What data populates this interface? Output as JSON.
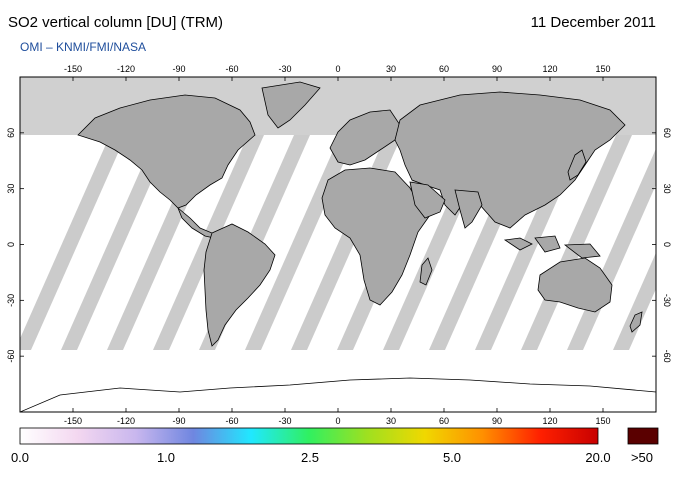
{
  "header": {
    "title": "SO2 vertical column [DU] (TRM)",
    "date": "11 December 2011",
    "source": "OMI  –  KNMI/FMI/NASA"
  },
  "map": {
    "projection": "equirectangular",
    "lon_range": [
      -180,
      180
    ],
    "lat_range": [
      -90,
      90
    ],
    "lon_ticks": [
      "-150",
      "-120",
      "-90",
      "-60",
      "-30",
      "0",
      "30",
      "60",
      "90",
      "120",
      "150"
    ],
    "lat_ticks": [
      "60",
      "30",
      "0",
      "-30",
      "-60"
    ],
    "colors": {
      "polar_night": "#d0d0d0",
      "land": "#a8a8a8",
      "orbit_gap": "#c8c8c8",
      "ocean": "#ffffff",
      "coast": "#000000"
    }
  },
  "colorbar": {
    "labels": [
      "0.0",
      "1.0",
      "2.5",
      "5.0",
      "20.0",
      ">50"
    ],
    "colors": [
      "#ffffff",
      "#f3d7f0",
      "#c9b7ee",
      "#6f86e0",
      "#20e8ff",
      "#30f060",
      "#9ee020",
      "#f0d800",
      "#ff9000",
      "#ff2000",
      "#c80000"
    ],
    "overflow_color": "#5a0000"
  }
}
